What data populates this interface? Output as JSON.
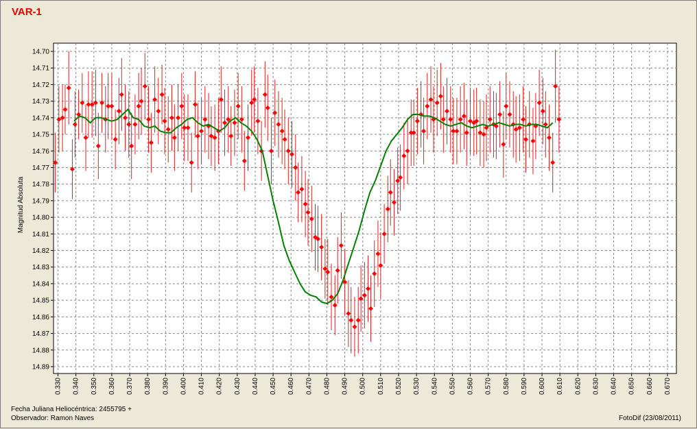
{
  "chart_data": {
    "type": "scatter",
    "title": "VAR-1",
    "xlabel": "",
    "ylabel": "Magnitud Absoluta",
    "xlim": [
      0.3275,
      0.675
    ],
    "ylim": [
      14.7,
      14.89
    ],
    "y_inverted": true,
    "grid": true,
    "x_ticks": [
      "0.330",
      "0.340",
      "0.350",
      "0.360",
      "0.370",
      "0.380",
      "0.390",
      "0.400",
      "0.410",
      "0.420",
      "0.430",
      "0.440",
      "0.450",
      "0.460",
      "0.470",
      "0.480",
      "0.490",
      "0.500",
      "0.510",
      "0.520",
      "0.530",
      "0.540",
      "0.550",
      "0.560",
      "0.570",
      "0.580",
      "0.590",
      "0.600",
      "0.610",
      "0.620",
      "0.630",
      "0.640",
      "0.650",
      "0.660",
      "0.670"
    ],
    "y_ticks": [
      "14.70",
      "14.71",
      "14.72",
      "14.73",
      "14.74",
      "14.75",
      "14.76",
      "14.77",
      "14.78",
      "14.79",
      "14.80",
      "14.81",
      "14.82",
      "14.83",
      "14.84",
      "14.85",
      "14.86",
      "14.87",
      "14.88",
      "14.89"
    ],
    "colors": {
      "points": "#ff0000",
      "error_bars": "#e02020",
      "trend": "#008000",
      "grid": "#888888"
    },
    "points": [
      [
        0.3285,
        14.767,
        0.018
      ],
      [
        0.3305,
        14.741,
        0.02
      ],
      [
        0.3325,
        14.74,
        0.02
      ],
      [
        0.334,
        14.735,
        0.015
      ],
      [
        0.336,
        14.722,
        0.022
      ],
      [
        0.338,
        14.771,
        0.018
      ],
      [
        0.3395,
        14.744,
        0.02
      ],
      [
        0.3415,
        14.738,
        0.015
      ],
      [
        0.3435,
        14.731,
        0.018
      ],
      [
        0.3455,
        14.752,
        0.02
      ],
      [
        0.347,
        14.732,
        0.02
      ],
      [
        0.349,
        14.732,
        0.02
      ],
      [
        0.351,
        14.731,
        0.02
      ],
      [
        0.3525,
        14.757,
        0.02
      ],
      [
        0.3545,
        14.731,
        0.018
      ],
      [
        0.3565,
        14.741,
        0.02
      ],
      [
        0.358,
        14.733,
        0.02
      ],
      [
        0.36,
        14.733,
        0.02
      ],
      [
        0.362,
        14.753,
        0.018
      ],
      [
        0.364,
        14.736,
        0.02
      ],
      [
        0.3655,
        14.726,
        0.022
      ],
      [
        0.3675,
        14.74,
        0.02
      ],
      [
        0.3695,
        14.744,
        0.02
      ],
      [
        0.371,
        14.757,
        0.02
      ],
      [
        0.373,
        14.744,
        0.018
      ],
      [
        0.375,
        14.733,
        0.02
      ],
      [
        0.3765,
        14.73,
        0.02
      ],
      [
        0.3785,
        14.721,
        0.02
      ],
      [
        0.3805,
        14.741,
        0.02
      ],
      [
        0.382,
        14.755,
        0.018
      ],
      [
        0.384,
        14.729,
        0.02
      ],
      [
        0.386,
        14.736,
        0.02
      ],
      [
        0.388,
        14.726,
        0.018
      ],
      [
        0.3895,
        14.742,
        0.02
      ],
      [
        0.3915,
        14.747,
        0.02
      ],
      [
        0.3935,
        14.74,
        0.02
      ],
      [
        0.395,
        14.752,
        0.02
      ],
      [
        0.397,
        14.74,
        0.02
      ],
      [
        0.399,
        14.733,
        0.02
      ],
      [
        0.4005,
        14.746,
        0.02
      ],
      [
        0.4025,
        14.746,
        0.02
      ],
      [
        0.4045,
        14.767,
        0.018
      ],
      [
        0.4065,
        14.732,
        0.02
      ],
      [
        0.408,
        14.751,
        0.02
      ],
      [
        0.41,
        14.748,
        0.02
      ],
      [
        0.412,
        14.741,
        0.02
      ],
      [
        0.414,
        14.745,
        0.02
      ],
      [
        0.4155,
        14.751,
        0.018
      ],
      [
        0.4175,
        14.752,
        0.02
      ],
      [
        0.4195,
        14.748,
        0.02
      ],
      [
        0.421,
        14.729,
        0.02
      ],
      [
        0.423,
        14.743,
        0.02
      ],
      [
        0.425,
        14.741,
        0.02
      ],
      [
        0.4265,
        14.751,
        0.018
      ],
      [
        0.4285,
        14.743,
        0.02
      ],
      [
        0.4305,
        14.733,
        0.02
      ],
      [
        0.4325,
        14.741,
        0.02
      ],
      [
        0.434,
        14.766,
        0.018
      ],
      [
        0.436,
        14.752,
        0.02
      ],
      [
        0.438,
        14.731,
        0.02
      ],
      [
        0.4395,
        14.729,
        0.02
      ],
      [
        0.4415,
        14.742,
        0.02
      ],
      [
        0.4435,
        14.76,
        0.018
      ],
      [
        0.4455,
        14.726,
        0.02
      ],
      [
        0.447,
        14.734,
        0.02
      ],
      [
        0.449,
        14.76,
        0.02
      ],
      [
        0.451,
        14.737,
        0.02
      ],
      [
        0.453,
        14.744,
        0.02
      ],
      [
        0.455,
        14.748,
        0.02
      ],
      [
        0.4565,
        14.753,
        0.018
      ],
      [
        0.4585,
        14.76,
        0.02
      ],
      [
        0.4605,
        14.762,
        0.02
      ],
      [
        0.4625,
        14.77,
        0.02
      ],
      [
        0.464,
        14.785,
        0.018
      ],
      [
        0.466,
        14.783,
        0.02
      ],
      [
        0.468,
        14.792,
        0.02
      ],
      [
        0.4695,
        14.797,
        0.02
      ],
      [
        0.4715,
        14.801,
        0.02
      ],
      [
        0.4735,
        14.812,
        0.02
      ],
      [
        0.475,
        14.813,
        0.02
      ],
      [
        0.477,
        14.818,
        0.02
      ],
      [
        0.479,
        14.831,
        0.018
      ],
      [
        0.4805,
        14.833,
        0.02
      ],
      [
        0.4825,
        14.848,
        0.02
      ],
      [
        0.4845,
        14.853,
        0.018
      ],
      [
        0.486,
        14.832,
        0.02
      ],
      [
        0.488,
        14.817,
        0.02
      ],
      [
        0.49,
        14.839,
        0.02
      ],
      [
        0.492,
        14.858,
        0.02
      ],
      [
        0.4935,
        14.862,
        0.02
      ],
      [
        0.4955,
        14.866,
        0.018
      ],
      [
        0.4975,
        14.862,
        0.02
      ],
      [
        0.499,
        14.849,
        0.02
      ],
      [
        0.501,
        14.847,
        0.02
      ],
      [
        0.503,
        14.843,
        0.02
      ],
      [
        0.5045,
        14.855,
        0.02
      ],
      [
        0.5065,
        14.834,
        0.02
      ],
      [
        0.5085,
        14.822,
        0.02
      ],
      [
        0.51,
        14.829,
        0.02
      ],
      [
        0.512,
        14.81,
        0.018
      ],
      [
        0.514,
        14.795,
        0.02
      ],
      [
        0.5155,
        14.785,
        0.02
      ],
      [
        0.5175,
        14.791,
        0.02
      ],
      [
        0.5195,
        14.778,
        0.02
      ],
      [
        0.521,
        14.776,
        0.02
      ],
      [
        0.523,
        14.763,
        0.02
      ],
      [
        0.525,
        14.76,
        0.02
      ],
      [
        0.527,
        14.749,
        0.02
      ],
      [
        0.5285,
        14.749,
        0.02
      ],
      [
        0.5305,
        14.742,
        0.02
      ],
      [
        0.5325,
        14.738,
        0.02
      ],
      [
        0.534,
        14.748,
        0.02
      ],
      [
        0.536,
        14.733,
        0.02
      ],
      [
        0.538,
        14.729,
        0.02
      ],
      [
        0.5395,
        14.741,
        0.02
      ],
      [
        0.5415,
        14.731,
        0.02
      ],
      [
        0.5435,
        14.727,
        0.02
      ],
      [
        0.545,
        14.741,
        0.02
      ],
      [
        0.547,
        14.736,
        0.02
      ],
      [
        0.549,
        14.741,
        0.02
      ],
      [
        0.5505,
        14.748,
        0.02
      ],
      [
        0.5525,
        14.748,
        0.02
      ],
      [
        0.5545,
        14.741,
        0.02
      ],
      [
        0.5565,
        14.739,
        0.02
      ],
      [
        0.558,
        14.749,
        0.02
      ],
      [
        0.56,
        14.742,
        0.02
      ],
      [
        0.562,
        14.743,
        0.02
      ],
      [
        0.5635,
        14.742,
        0.02
      ],
      [
        0.5655,
        14.749,
        0.02
      ],
      [
        0.5675,
        14.75,
        0.02
      ],
      [
        0.569,
        14.746,
        0.02
      ],
      [
        0.571,
        14.741,
        0.02
      ],
      [
        0.573,
        14.744,
        0.02
      ],
      [
        0.5745,
        14.745,
        0.02
      ],
      [
        0.5765,
        14.738,
        0.02
      ],
      [
        0.5785,
        14.756,
        0.02
      ],
      [
        0.58,
        14.733,
        0.02
      ],
      [
        0.582,
        14.738,
        0.02
      ],
      [
        0.584,
        14.744,
        0.02
      ],
      [
        0.5855,
        14.747,
        0.02
      ],
      [
        0.5875,
        14.746,
        0.02
      ],
      [
        0.5895,
        14.741,
        0.02
      ],
      [
        0.591,
        14.753,
        0.02
      ],
      [
        0.593,
        14.744,
        0.02
      ],
      [
        0.595,
        14.754,
        0.02
      ],
      [
        0.5965,
        14.745,
        0.02
      ],
      [
        0.5985,
        14.731,
        0.02
      ],
      [
        0.6005,
        14.736,
        0.02
      ],
      [
        0.602,
        14.744,
        0.02
      ],
      [
        0.604,
        14.752,
        0.02
      ],
      [
        0.606,
        14.767,
        0.018
      ],
      [
        0.6075,
        14.721,
        0.022
      ],
      [
        0.6095,
        14.741,
        0.02
      ]
    ],
    "trend_x": [
      0.339,
      0.342,
      0.345,
      0.348,
      0.351,
      0.354,
      0.357,
      0.36,
      0.363,
      0.366,
      0.369,
      0.372,
      0.375,
      0.378,
      0.381,
      0.384,
      0.387,
      0.39,
      0.393,
      0.396,
      0.399,
      0.402,
      0.405,
      0.408,
      0.411,
      0.414,
      0.417,
      0.42,
      0.423,
      0.426,
      0.429,
      0.432,
      0.435,
      0.438,
      0.441,
      0.444,
      0.447,
      0.45,
      0.453,
      0.456,
      0.459,
      0.462,
      0.465,
      0.468,
      0.471,
      0.474,
      0.477,
      0.48,
      0.483,
      0.486,
      0.489,
      0.492,
      0.495,
      0.498,
      0.501,
      0.504,
      0.507,
      0.51,
      0.513,
      0.516,
      0.519,
      0.522,
      0.525,
      0.528,
      0.531,
      0.534,
      0.537,
      0.54,
      0.543,
      0.546,
      0.549,
      0.552,
      0.555,
      0.558,
      0.561,
      0.564,
      0.567,
      0.57,
      0.573,
      0.576,
      0.579,
      0.582,
      0.585,
      0.588,
      0.591,
      0.594,
      0.597,
      0.6,
      0.603,
      0.606
    ],
    "trend_y": [
      14.742,
      14.739,
      14.74,
      14.743,
      14.74,
      14.74,
      14.741,
      14.742,
      14.741,
      14.738,
      14.735,
      14.74,
      14.741,
      14.745,
      14.746,
      14.745,
      14.748,
      14.749,
      14.749,
      14.746,
      14.744,
      14.741,
      14.74,
      14.743,
      14.745,
      14.744,
      14.746,
      14.748,
      14.746,
      14.742,
      14.74,
      14.743,
      14.745,
      14.748,
      14.753,
      14.76,
      14.775,
      14.79,
      14.803,
      14.817,
      14.826,
      14.833,
      14.84,
      14.845,
      14.847,
      14.848,
      14.851,
      14.852,
      14.85,
      14.846,
      14.838,
      14.828,
      14.818,
      14.808,
      14.796,
      14.785,
      14.778,
      14.769,
      14.76,
      14.754,
      14.75,
      14.746,
      14.741,
      14.738,
      14.738,
      14.739,
      14.739,
      14.74,
      14.742,
      14.744,
      14.745,
      14.744,
      14.743,
      14.745,
      14.746,
      14.745,
      14.744,
      14.745,
      14.744,
      14.743,
      14.744,
      14.745,
      14.744,
      14.744,
      14.745,
      14.744,
      14.744,
      14.745,
      14.746,
      14.743
    ]
  },
  "footer": {
    "jd_label": "Fecha Juliana Heliocéntrica: 2455795 +",
    "observer_label": "Observador: Ramon Naves",
    "software_label": "FotoDif (23/08/2011)"
  }
}
